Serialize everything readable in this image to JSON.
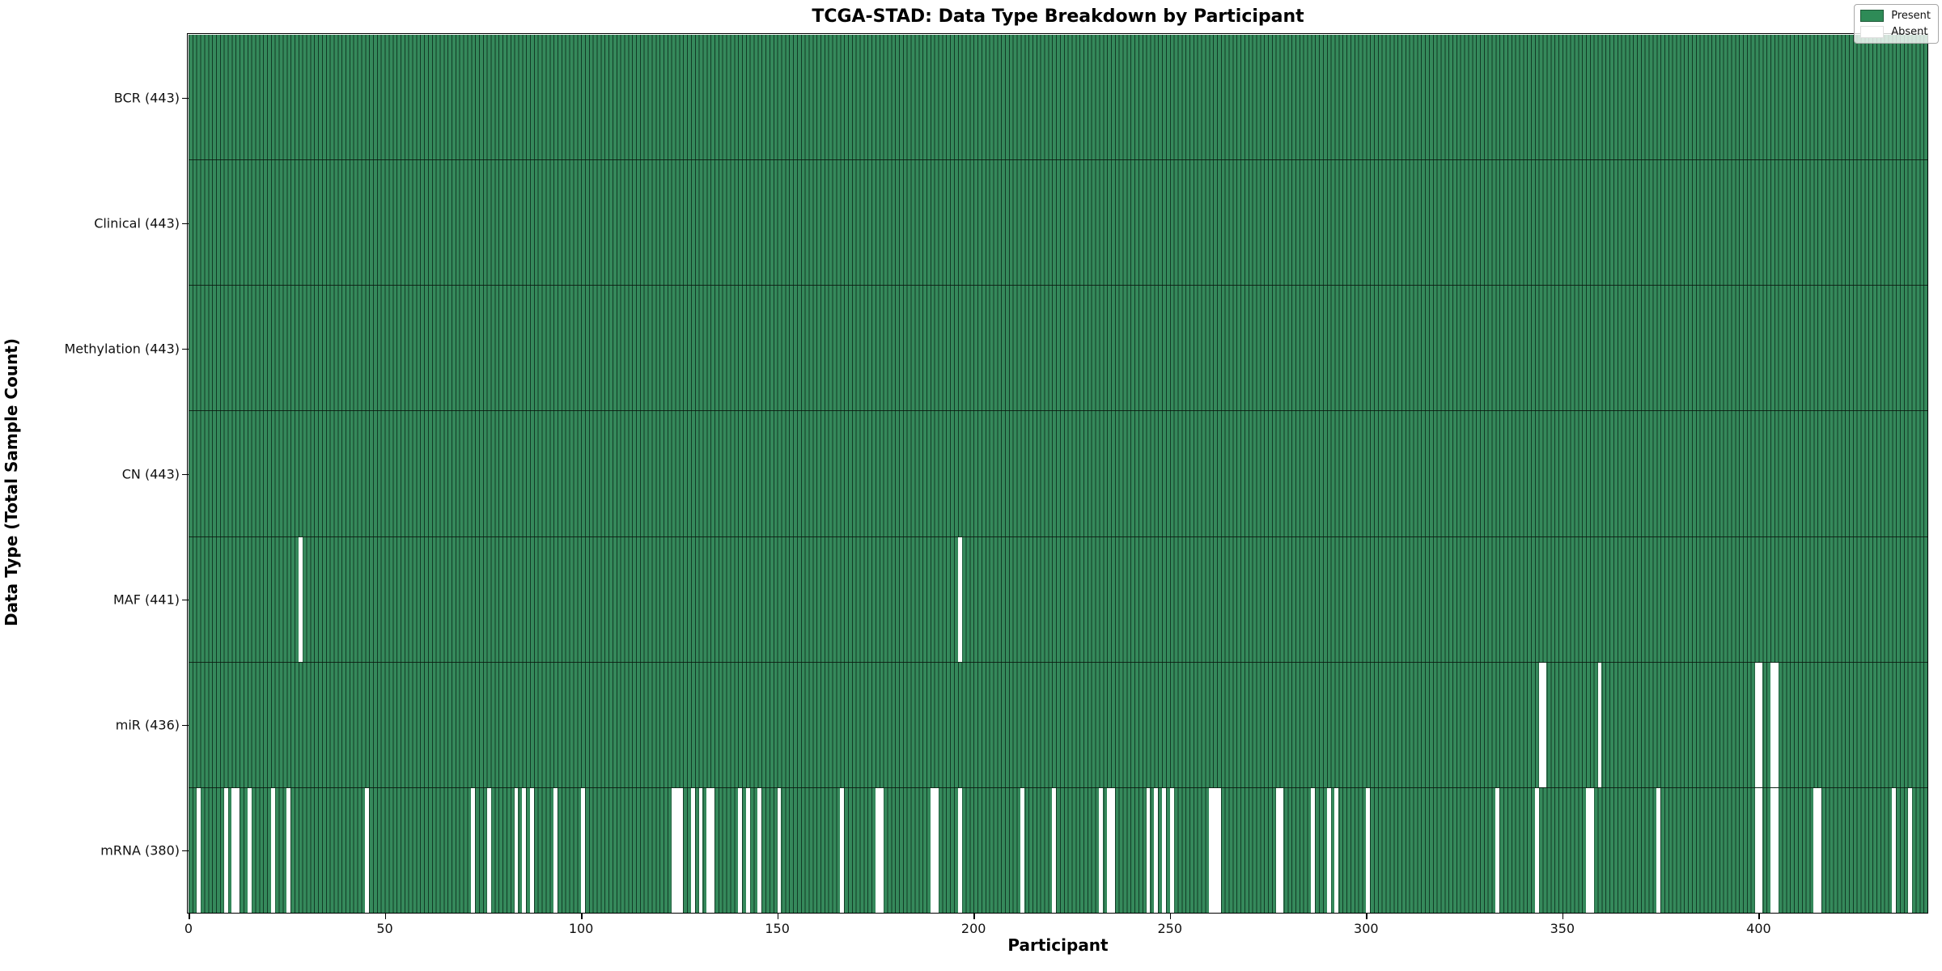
{
  "figure": {
    "background": "#ffffff"
  },
  "chart_data": {
    "type": "heatmap",
    "title": "TCGA-STAD: Data Type Breakdown by Participant",
    "xlabel": "Participant",
    "ylabel": "Data Type (Total Sample Count)",
    "x_ticks": [
      0,
      50,
      100,
      150,
      200,
      250,
      300,
      350,
      400
    ],
    "n_participants": 443,
    "x_range": [
      0,
      443
    ],
    "grid": false,
    "legend_position": "upper-right",
    "legend": {
      "present_label": "Present",
      "absent_label": "Absent",
      "present_color": "#2e8b57",
      "absent_color": "#ffffff"
    },
    "colors": {
      "present_fill": "#35895b",
      "bar_edge": "#123b26",
      "absent_fill": "#ffffff",
      "row_divider": "#1c1c1c",
      "plot_border": "#000000"
    },
    "rows": [
      {
        "label": "BCR (443)",
        "data_type": "BCR",
        "total": 443,
        "absent_participants": []
      },
      {
        "label": "Clinical (443)",
        "data_type": "Clinical",
        "total": 443,
        "absent_participants": []
      },
      {
        "label": "Methylation (443)",
        "data_type": "Methylation",
        "total": 443,
        "absent_participants": []
      },
      {
        "label": "CN (443)",
        "data_type": "CN",
        "total": 443,
        "absent_participants": []
      },
      {
        "label": "MAF (441)",
        "data_type": "MAF",
        "total": 441,
        "absent_participants": [
          28,
          196
        ]
      },
      {
        "label": "miR (436)",
        "data_type": "miR",
        "total": 436,
        "absent_participants": [
          344,
          345,
          359,
          399,
          400,
          403,
          404
        ]
      },
      {
        "label": "mRNA (380)",
        "data_type": "mRNA",
        "total": 380,
        "absent_participants": [
          2,
          9,
          11,
          12,
          15,
          21,
          25,
          45,
          72,
          76,
          83,
          85,
          87,
          93,
          100,
          123,
          124,
          125,
          128,
          130,
          132,
          133,
          140,
          142,
          145,
          150,
          166,
          175,
          176,
          189,
          190,
          196,
          212,
          220,
          232,
          234,
          235,
          244,
          246,
          248,
          250,
          260,
          261,
          262,
          277,
          278,
          286,
          290,
          292,
          300,
          333,
          343,
          356,
          357,
          374,
          399,
          400,
          403,
          404,
          414,
          415,
          434,
          438
        ]
      }
    ]
  }
}
